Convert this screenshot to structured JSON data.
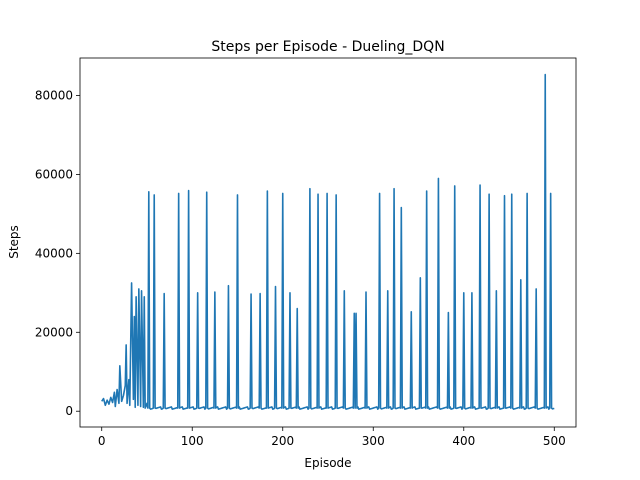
{
  "chart_data": {
    "type": "line",
    "title": "Steps per Episode - Dueling_DQN",
    "xlabel": "Episode",
    "ylabel": "Steps",
    "xlim": [
      -24,
      524
    ],
    "ylim": [
      -4000,
      89500
    ],
    "xticks": [
      0,
      100,
      200,
      300,
      400,
      500
    ],
    "yticks": [
      0,
      20000,
      40000,
      60000,
      80000
    ],
    "ytick_labels": [
      "0",
      "20000",
      "40000",
      "60000",
      "80000"
    ],
    "grid": false,
    "line_color": "#1f77b4",
    "baseline": 800,
    "early_segment": {
      "x": [
        0,
        2,
        4,
        6,
        8,
        10,
        12,
        14,
        15,
        17,
        19,
        20,
        22,
        24,
        26,
        27,
        28,
        30,
        31,
        33,
        35,
        36,
        37,
        38,
        40,
        41,
        43,
        44,
        46,
        47,
        48,
        50
      ],
      "y": [
        2500,
        3200,
        1500,
        2800,
        1800,
        3500,
        2200,
        4800,
        1200,
        5500,
        2000,
        11500,
        2500,
        4000,
        6500,
        16800,
        2000,
        8000,
        1500,
        32500,
        3000,
        24000,
        1000,
        29000,
        1500,
        31000,
        1200,
        30500,
        1000,
        29000,
        800,
        2000
      ]
    },
    "spikes": [
      {
        "x": 52,
        "y": 55600
      },
      {
        "x": 58,
        "y": 54800
      },
      {
        "x": 69,
        "y": 29800
      },
      {
        "x": 85,
        "y": 55200
      },
      {
        "x": 96,
        "y": 55900
      },
      {
        "x": 106,
        "y": 30000
      },
      {
        "x": 116,
        "y": 55500
      },
      {
        "x": 125,
        "y": 30200
      },
      {
        "x": 140,
        "y": 31800
      },
      {
        "x": 150,
        "y": 54800
      },
      {
        "x": 165,
        "y": 29700
      },
      {
        "x": 175,
        "y": 29800
      },
      {
        "x": 183,
        "y": 55800
      },
      {
        "x": 192,
        "y": 31600
      },
      {
        "x": 200,
        "y": 55200
      },
      {
        "x": 208,
        "y": 30000
      },
      {
        "x": 216,
        "y": 26000
      },
      {
        "x": 230,
        "y": 56400
      },
      {
        "x": 239,
        "y": 55000
      },
      {
        "x": 249,
        "y": 55200
      },
      {
        "x": 259,
        "y": 54800
      },
      {
        "x": 268,
        "y": 30500
      },
      {
        "x": 279,
        "y": 24800
      },
      {
        "x": 281,
        "y": 24800
      },
      {
        "x": 292,
        "y": 30200
      },
      {
        "x": 307,
        "y": 55200
      },
      {
        "x": 316,
        "y": 30500
      },
      {
        "x": 323,
        "y": 56400
      },
      {
        "x": 331,
        "y": 51600
      },
      {
        "x": 342,
        "y": 25200
      },
      {
        "x": 352,
        "y": 33800
      },
      {
        "x": 359,
        "y": 55800
      },
      {
        "x": 372,
        "y": 59000
      },
      {
        "x": 383,
        "y": 25000
      },
      {
        "x": 390,
        "y": 57100
      },
      {
        "x": 400,
        "y": 30000
      },
      {
        "x": 409,
        "y": 30000
      },
      {
        "x": 418,
        "y": 57300
      },
      {
        "x": 428,
        "y": 55000
      },
      {
        "x": 436,
        "y": 30500
      },
      {
        "x": 445,
        "y": 54600
      },
      {
        "x": 453,
        "y": 55000
      },
      {
        "x": 463,
        "y": 33300
      },
      {
        "x": 470,
        "y": 55200
      },
      {
        "x": 480,
        "y": 31000
      },
      {
        "x": 490,
        "y": 85300
      },
      {
        "x": 496,
        "y": 55200
      }
    ],
    "last_x": 500
  }
}
